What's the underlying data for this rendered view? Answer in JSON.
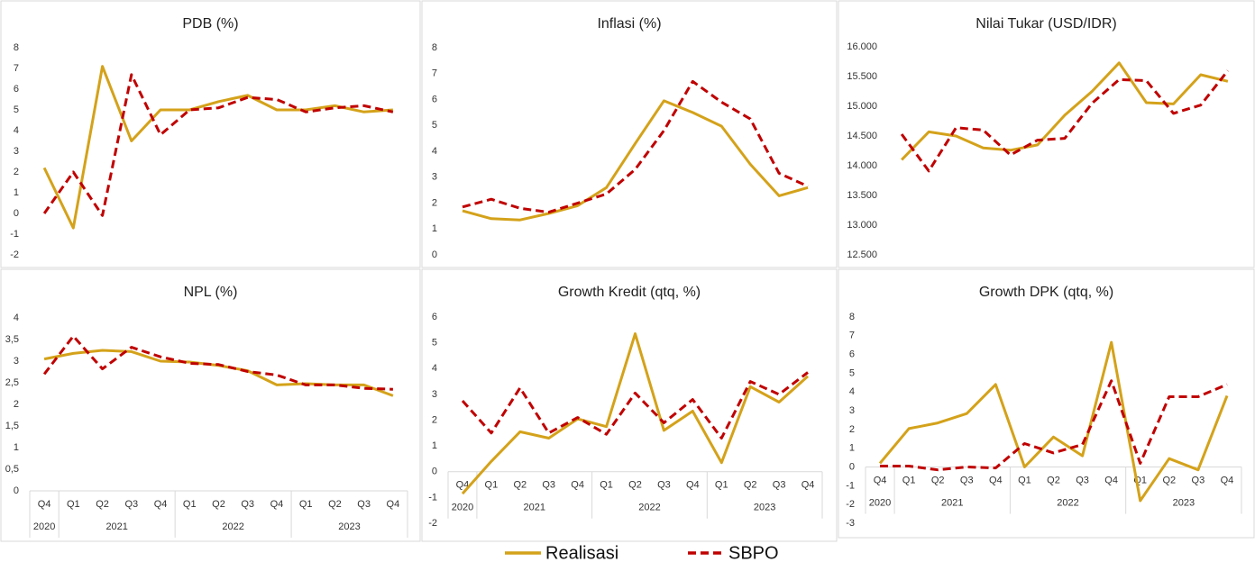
{
  "chart_data": [
    {
      "type": "line",
      "title": "PDB (%)",
      "ylim": [
        -2,
        8
      ],
      "yticks": [
        -2,
        -1,
        0,
        1,
        2,
        3,
        4,
        5,
        6,
        7,
        8
      ],
      "categories": [
        null,
        null,
        null,
        null,
        null,
        null,
        null,
        null,
        null,
        null,
        null,
        null,
        null
      ],
      "series": [
        {
          "name": "Realisasi",
          "color": "#d4a21a",
          "values": [
            2.2,
            -0.7,
            7.1,
            3.5,
            5.0,
            5.0,
            5.4,
            5.7,
            5.0,
            5.0,
            5.2,
            4.9,
            5.0
          ]
        },
        {
          "name": "SBPO",
          "color": "#c00000",
          "dashed": true,
          "values": [
            0,
            2.0,
            -0.1,
            6.7,
            3.8,
            5.0,
            5.1,
            5.6,
            5.5,
            4.9,
            5.1,
            5.2,
            4.9
          ]
        }
      ]
    },
    {
      "type": "line",
      "title": "Inflasi (%)",
      "ylim": [
        0,
        8
      ],
      "yticks": [
        0,
        1,
        2,
        3,
        4,
        5,
        6,
        7,
        8
      ],
      "categories": [
        null,
        null,
        null,
        null,
        null,
        null,
        null,
        null,
        null,
        null,
        null,
        null,
        null
      ],
      "series": [
        {
          "name": "Realisasi",
          "color": "#d4a21a",
          "values": [
            1.7,
            1.4,
            1.35,
            1.6,
            1.9,
            2.6,
            4.3,
            5.95,
            5.5,
            4.97,
            3.5,
            2.28,
            2.6
          ]
        },
        {
          "name": "SBPO",
          "color": "#c00000",
          "dashed": true,
          "values": [
            1.85,
            2.15,
            1.8,
            1.65,
            2.0,
            2.35,
            3.3,
            4.8,
            6.7,
            5.9,
            5.25,
            3.15,
            2.65
          ]
        }
      ]
    },
    {
      "type": "line",
      "title": "Nilai Tukar (USD/IDR)",
      "ylim": [
        12500,
        16000
      ],
      "yticks": [
        {
          "value": 12500,
          "label": "12.500"
        },
        {
          "value": 13000,
          "label": "13.000"
        },
        {
          "value": 13500,
          "label": "13.500"
        },
        {
          "value": 14000,
          "label": "14.000"
        },
        {
          "value": 14500,
          "label": "14.500"
        },
        {
          "value": 15000,
          "label": "15.000"
        },
        {
          "value": 15500,
          "label": "15.500"
        },
        {
          "value": 16000,
          "label": "16.000"
        }
      ],
      "categories": [
        null,
        null,
        null,
        null,
        null,
        null,
        null,
        null,
        null,
        null,
        null,
        null,
        null
      ],
      "series": [
        {
          "name": "Realisasi",
          "color": "#d4a21a",
          "values": [
            14100,
            14570,
            14500,
            14300,
            14260,
            14350,
            14850,
            15250,
            15730,
            15060,
            15040,
            15530,
            15420
          ]
        },
        {
          "name": "SBPO",
          "color": "#c00000",
          "dashed": true,
          "values": [
            14530,
            13910,
            14640,
            14600,
            14180,
            14430,
            14460,
            15050,
            15450,
            15430,
            14880,
            15020,
            15600
          ]
        }
      ]
    },
    {
      "type": "line",
      "title": "NPL (%)",
      "ylim": [
        0,
        4
      ],
      "yticks": [
        0,
        {
          "value": 0.5,
          "label": "0,5"
        },
        1,
        {
          "value": 1.5,
          "label": "1,5"
        },
        2,
        {
          "value": 2.5,
          "label": "2,5"
        },
        3,
        {
          "value": 3.5,
          "label": "3,5"
        },
        4
      ],
      "groups": [
        {
          "name": "2020",
          "categories": [
            "Q4"
          ]
        },
        {
          "name": "2021",
          "categories": [
            "Q1",
            "Q2",
            "Q3",
            "Q4"
          ]
        },
        {
          "name": "2022",
          "categories": [
            "Q1",
            "Q2",
            "Q3",
            "Q4"
          ]
        },
        {
          "name": "2023",
          "categories": [
            "Q1",
            "Q2",
            "Q3",
            "Q4"
          ]
        }
      ],
      "series": [
        {
          "name": "Realisasi",
          "color": "#d4a21a",
          "values": [
            3.05,
            3.18,
            3.25,
            3.22,
            3.0,
            2.98,
            2.9,
            2.78,
            2.45,
            2.48,
            2.45,
            2.45,
            2.2
          ]
        },
        {
          "name": "SBPO",
          "color": "#c00000",
          "dashed": true,
          "values": [
            2.7,
            3.58,
            2.82,
            3.32,
            3.1,
            2.95,
            2.92,
            2.76,
            2.68,
            2.45,
            2.45,
            2.37,
            2.35
          ]
        }
      ]
    },
    {
      "type": "line",
      "title": "Growth Kredit (qtq, %)",
      "ylim": [
        -2,
        6
      ],
      "yticks": [
        -2,
        -1,
        0,
        1,
        2,
        3,
        4,
        5,
        6
      ],
      "groups": [
        {
          "name": "2020",
          "categories": [
            "Q4"
          ]
        },
        {
          "name": "2021",
          "categories": [
            "Q1",
            "Q2",
            "Q3",
            "Q4"
          ]
        },
        {
          "name": "2022",
          "categories": [
            "Q1",
            "Q2",
            "Q3",
            "Q4"
          ]
        },
        {
          "name": "2023",
          "categories": [
            "Q1",
            "Q2",
            "Q3",
            "Q4"
          ]
        }
      ],
      "series": [
        {
          "name": "Realisasi",
          "color": "#d4a21a",
          "values": [
            -0.85,
            0.4,
            1.55,
            1.3,
            2.05,
            1.75,
            5.35,
            1.6,
            2.35,
            0.35,
            3.3,
            2.7,
            3.7
          ]
        },
        {
          "name": "SBPO",
          "color": "#c00000",
          "dashed": true,
          "values": [
            2.75,
            1.5,
            3.25,
            1.5,
            2.1,
            1.45,
            3.05,
            1.9,
            2.8,
            1.3,
            3.5,
            3.0,
            3.85
          ]
        }
      ]
    },
    {
      "type": "line",
      "title": "Growth DPK (qtq, %)",
      "ylim": [
        -3,
        8
      ],
      "yticks": [
        -3,
        -2,
        -1,
        0,
        1,
        2,
        3,
        4,
        5,
        6,
        7,
        8
      ],
      "groups": [
        {
          "name": "2020",
          "categories": [
            "Q4"
          ]
        },
        {
          "name": "2021",
          "categories": [
            "Q1",
            "Q2",
            "Q3",
            "Q4"
          ]
        },
        {
          "name": "2022",
          "categories": [
            "Q1",
            "Q2",
            "Q3",
            "Q4"
          ]
        },
        {
          "name": "2023",
          "categories": [
            "Q1",
            "Q2",
            "Q3",
            "Q4"
          ]
        }
      ],
      "series": [
        {
          "name": "Realisasi",
          "color": "#d4a21a",
          "values": [
            0.2,
            2.05,
            2.35,
            2.85,
            4.4,
            0.0,
            1.6,
            0.6,
            6.65,
            -1.8,
            0.45,
            -0.15,
            3.8
          ]
        },
        {
          "name": "SBPO",
          "color": "#c00000",
          "dashed": true,
          "values": [
            0.05,
            0.05,
            -0.15,
            0.0,
            -0.05,
            1.25,
            0.75,
            1.2,
            4.6,
            0.2,
            3.75,
            3.75,
            4.4
          ]
        }
      ]
    }
  ]
}
